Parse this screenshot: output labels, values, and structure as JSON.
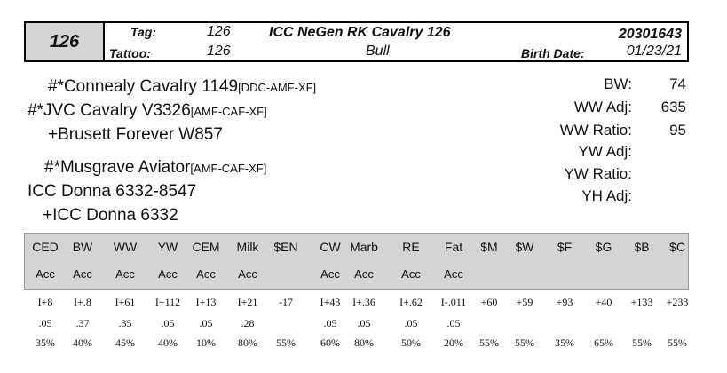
{
  "header": {
    "lot_number": "126",
    "tag_label": "Tag:",
    "tag_value": "126",
    "tattoo_label": "Tattoo:",
    "tattoo_value": "126",
    "animal_name": "ICC NeGen RK Cavalry 126",
    "sex": "Bull",
    "registration": "20301643",
    "birth_date_label": "Birth Date:",
    "birth_date": "01/23/21"
  },
  "pedigree": {
    "sire_sire": {
      "name": "#*Connealy Cavalry 1149",
      "reg": "[DDC-AMF-XF]"
    },
    "sire": {
      "name": "#*JVC Cavalry V3326",
      "reg": "[AMF-CAF-XF]"
    },
    "sire_dam": {
      "name": "+Brusett Forever W857",
      "reg": ""
    },
    "dam_sire": {
      "name": "#*Musgrave Aviator",
      "reg": "[AMF-CAF-XF]"
    },
    "dam": {
      "name": "ICC Donna 6332-8547",
      "reg": ""
    },
    "dam_dam": {
      "name": "+ICC Donna 6332",
      "reg": ""
    }
  },
  "stats": [
    {
      "label": "BW:",
      "value": "74"
    },
    {
      "label": "WW Adj:",
      "value": "635"
    },
    {
      "label": "WW Ratio:",
      "value": "95"
    },
    {
      "label": "YW Adj:",
      "value": ""
    },
    {
      "label": "YW Ratio:",
      "value": ""
    },
    {
      "label": "YH Adj:",
      "value": ""
    }
  ],
  "epd": {
    "headers": [
      "CED",
      "BW",
      "WW",
      "YW",
      "CEM",
      "Milk",
      "$EN",
      "CW",
      "Marb",
      "RE",
      "Fat",
      "$M",
      "$W",
      "$F",
      "$G",
      "$B",
      "$C"
    ],
    "acc_labels": [
      "Acc",
      "Acc",
      "Acc",
      "Acc",
      "Acc",
      "Acc",
      "",
      "Acc",
      "Acc",
      "Acc",
      "Acc",
      "",
      "",
      "",
      "",
      "",
      ""
    ],
    "values": [
      "I+8",
      "I+.8",
      "I+61",
      "I+112",
      "I+13",
      "I+21",
      "-17",
      "I+43",
      "I+.36",
      "I+.62",
      "I-.011",
      "+60",
      "+59",
      "+93",
      "+40",
      "+133",
      "+233"
    ],
    "accuracy": [
      ".05",
      ".37",
      ".35",
      ".05",
      ".05",
      ".28",
      "",
      ".05",
      ".05",
      ".05",
      ".05",
      "",
      "",
      "",
      "",
      "",
      ""
    ],
    "percentile": [
      "35%",
      "40%",
      "45%",
      "40%",
      "10%",
      "80%",
      "55%",
      "60%",
      "80%",
      "50%",
      "20%",
      "55%",
      "55%",
      "35%",
      "65%",
      "55%",
      "55%"
    ]
  }
}
